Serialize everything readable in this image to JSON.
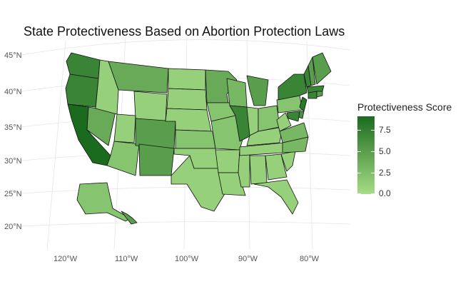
{
  "chart_data": {
    "type": "choropleth",
    "title": "State Protectiveness Based on Abortion Protection Laws",
    "legend": {
      "title": "Protectiveness Score",
      "placement": "right",
      "min": 0,
      "max": 9,
      "low_color": "#a6dd86",
      "high_color": "#1b6b1e",
      "ticks": [
        "0.0",
        "2.5",
        "5.0",
        "7.5"
      ]
    },
    "axes": {
      "lat_labels": [
        "20°N",
        "25°N",
        "30°N",
        "35°N",
        "40°N",
        "45°N"
      ],
      "lon_labels": [
        "120°W",
        "110°W",
        "100°W",
        "90°W",
        "80°W"
      ]
    },
    "grid": true,
    "states": [
      {
        "name": "WA",
        "value": 7
      },
      {
        "name": "OR",
        "value": 7
      },
      {
        "name": "CA",
        "value": 9
      },
      {
        "name": "NV",
        "value": 4
      },
      {
        "name": "ID",
        "value": 1
      },
      {
        "name": "MT",
        "value": 4
      },
      {
        "name": "WY",
        "value": 1
      },
      {
        "name": "UT",
        "value": 1
      },
      {
        "name": "AZ",
        "value": 2
      },
      {
        "name": "CO",
        "value": 5
      },
      {
        "name": "NM",
        "value": 5
      },
      {
        "name": "ND",
        "value": 1
      },
      {
        "name": "SD",
        "value": 1
      },
      {
        "name": "NE",
        "value": 1
      },
      {
        "name": "KS",
        "value": 2
      },
      {
        "name": "OK",
        "value": 1
      },
      {
        "name": "TX",
        "value": 1
      },
      {
        "name": "MN",
        "value": 4
      },
      {
        "name": "IA",
        "value": 2
      },
      {
        "name": "MO",
        "value": 2
      },
      {
        "name": "AR",
        "value": 1
      },
      {
        "name": "LA",
        "value": 1
      },
      {
        "name": "WI",
        "value": 3
      },
      {
        "name": "IL",
        "value": 7
      },
      {
        "name": "MS",
        "value": 1
      },
      {
        "name": "MI",
        "value": 5
      },
      {
        "name": "IN",
        "value": 1
      },
      {
        "name": "KY",
        "value": 1
      },
      {
        "name": "TN",
        "value": 1
      },
      {
        "name": "AL",
        "value": 1
      },
      {
        "name": "OH",
        "value": 2
      },
      {
        "name": "GA",
        "value": 1
      },
      {
        "name": "FL",
        "value": 1
      },
      {
        "name": "SC",
        "value": 1
      },
      {
        "name": "NC",
        "value": 3
      },
      {
        "name": "VA",
        "value": 3
      },
      {
        "name": "WV",
        "value": 1
      },
      {
        "name": "PA",
        "value": 2
      },
      {
        "name": "NY",
        "value": 7
      },
      {
        "name": "VT",
        "value": 7
      },
      {
        "name": "NH",
        "value": 5
      },
      {
        "name": "ME",
        "value": 5
      },
      {
        "name": "MA",
        "value": 7
      },
      {
        "name": "CT",
        "value": 7
      },
      {
        "name": "RI",
        "value": 5
      },
      {
        "name": "NJ",
        "value": 8
      },
      {
        "name": "DE",
        "value": 6
      },
      {
        "name": "MD",
        "value": 7
      },
      {
        "name": "AK",
        "value": 2
      },
      {
        "name": "HI",
        "value": 5
      }
    ]
  }
}
